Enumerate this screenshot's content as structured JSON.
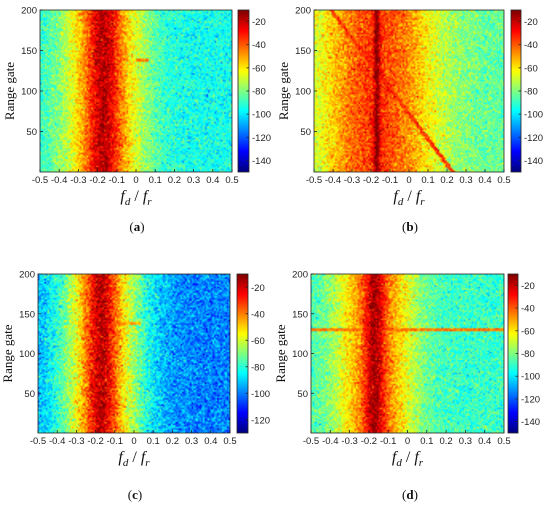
{
  "chart_data": [
    {
      "type": "heatmap",
      "panel_label": "(a)",
      "panel_label_letter": "a",
      "ylabel": "Range gate",
      "xlabel_sub_1": "d",
      "xlabel_sub_2": "r",
      "xlim": [
        -0.5,
        0.5
      ],
      "ylim": [
        0,
        200
      ],
      "x_ticks": [
        -0.5,
        -0.4,
        -0.3,
        -0.2,
        -0.1,
        0,
        0.1,
        0.2,
        0.3,
        0.4,
        0.5
      ],
      "x_tick_labels": [
        "-0.5",
        "-0.4",
        "-0.3",
        "-0.2",
        "-0.1",
        "0",
        "0.1",
        "0.2",
        "0.3",
        "0.4",
        "0.5"
      ],
      "y_ticks": [
        50,
        100,
        150,
        200
      ],
      "y_tick_labels": [
        "50",
        "100",
        "150",
        "200"
      ],
      "colorbar_ticks": [
        -20,
        -40,
        -60,
        -80,
        -100,
        -120,
        -140
      ],
      "colorbar_tick_labels": [
        "-20",
        "-40",
        "-60",
        "-80",
        "-100",
        "-120",
        "-140"
      ],
      "colorbar_range": [
        -150,
        -10
      ],
      "colormap": "jet",
      "features": {
        "clutter_center_fd": -0.17,
        "clutter_width": 0.06,
        "clutter_peak_db": -18,
        "background_db": -95,
        "skirt_width": 0.15,
        "target_row": 138,
        "target_fd": [
          0.0,
          0.07
        ],
        "diagonal": false
      }
    },
    {
      "type": "heatmap",
      "panel_label": "(b)",
      "panel_label_letter": "b",
      "ylabel": "Range gate",
      "xlabel_sub_1": "d",
      "xlabel_sub_2": "r",
      "xlim": [
        -0.5,
        0.5
      ],
      "ylim": [
        0,
        200
      ],
      "x_ticks": [
        -0.5,
        -0.4,
        -0.3,
        -0.2,
        -0.1,
        0,
        0.1,
        0.2,
        0.3,
        0.4,
        0.5
      ],
      "x_tick_labels": [
        "-0.5",
        "-0.4",
        "-0.3",
        "-0.2",
        "-0.1",
        "0",
        "0.1",
        "0.2",
        "0.3",
        "0.4",
        "0.5"
      ],
      "y_ticks": [
        50,
        100,
        150,
        200
      ],
      "y_tick_labels": [
        "50",
        "100",
        "150",
        "200"
      ],
      "colorbar_ticks": [
        -20,
        -40,
        -60,
        -80,
        -100,
        -120,
        -140
      ],
      "colorbar_tick_labels": [
        "-20",
        "-40",
        "-60",
        "-80",
        "-100",
        "-120",
        "-140"
      ],
      "colorbar_range": [
        -150,
        -10
      ],
      "colormap": "jet",
      "features": {
        "clutter_center_fd": -0.17,
        "clutter_width": 0.012,
        "clutter_peak_db": -10,
        "background_db": -85,
        "skirt_width": 0.22,
        "target_row": 138,
        "target_fd": [
          -0.1,
          -0.03
        ],
        "diagonal": true
      }
    },
    {
      "type": "heatmap",
      "panel_label": "(c)",
      "panel_label_letter": "c",
      "ylabel": "Range gate",
      "xlabel_sub_1": "d",
      "xlabel_sub_2": "r",
      "xlim": [
        -0.5,
        0.5
      ],
      "ylim": [
        0,
        200
      ],
      "x_ticks": [
        -0.5,
        -0.4,
        -0.3,
        -0.2,
        -0.1,
        0,
        0.1,
        0.2,
        0.3,
        0.4,
        0.5
      ],
      "x_tick_labels": [
        "-0.5",
        "-0.4",
        "-0.3",
        "-0.2",
        "-0.1",
        "0",
        "0.1",
        "0.2",
        "0.3",
        "0.4",
        "0.5"
      ],
      "y_ticks": [
        50,
        100,
        150,
        200
      ],
      "y_tick_labels": [
        "50",
        "100",
        "150",
        "200"
      ],
      "colorbar_ticks": [
        -20,
        -40,
        -60,
        -80,
        -100,
        -120
      ],
      "colorbar_tick_labels": [
        "-20",
        "-40",
        "-60",
        "-80",
        "-100",
        "-120"
      ],
      "colorbar_range": [
        -130,
        -10
      ],
      "colormap": "jet",
      "features": {
        "clutter_center_fd": -0.17,
        "clutter_width": 0.06,
        "clutter_peak_db": -18,
        "background_db": -100,
        "skirt_width": 0.16,
        "target_row": 138,
        "target_fd": [
          -0.08,
          0.03
        ],
        "diagonal": false
      }
    },
    {
      "type": "heatmap",
      "panel_label": "(d)",
      "panel_label_letter": "d",
      "ylabel": "Range gate",
      "xlabel_sub_1": "d",
      "xlabel_sub_2": "r",
      "xlim": [
        -0.5,
        0.5
      ],
      "ylim": [
        0,
        200
      ],
      "x_ticks": [
        -0.5,
        -0.4,
        -0.3,
        -0.2,
        -0.1,
        0,
        0.1,
        0.2,
        0.3,
        0.4,
        0.5
      ],
      "x_tick_labels": [
        "-0.5",
        "-0.4",
        "-0.3",
        "-0.2",
        "-0.1",
        "0",
        "0.1",
        "0.2",
        "0.3",
        "0.4",
        "0.5"
      ],
      "y_ticks": [
        50,
        100,
        150,
        200
      ],
      "y_tick_labels": [
        "50",
        "100",
        "150",
        "200"
      ],
      "colorbar_ticks": [
        -20,
        -40,
        -60,
        -80,
        -100,
        -120,
        -140
      ],
      "colorbar_tick_labels": [
        "-20",
        "-40",
        "-60",
        "-80",
        "-100",
        "-120",
        "-140"
      ],
      "colorbar_range": [
        -150,
        -10
      ],
      "colormap": "jet",
      "features": {
        "clutter_center_fd": -0.17,
        "clutter_width": 0.035,
        "clutter_peak_db": -15,
        "background_db": -90,
        "skirt_width": 0.14,
        "target_row": 130,
        "target_fd": [
          -0.5,
          0.5
        ],
        "diagonal": false
      }
    }
  ]
}
